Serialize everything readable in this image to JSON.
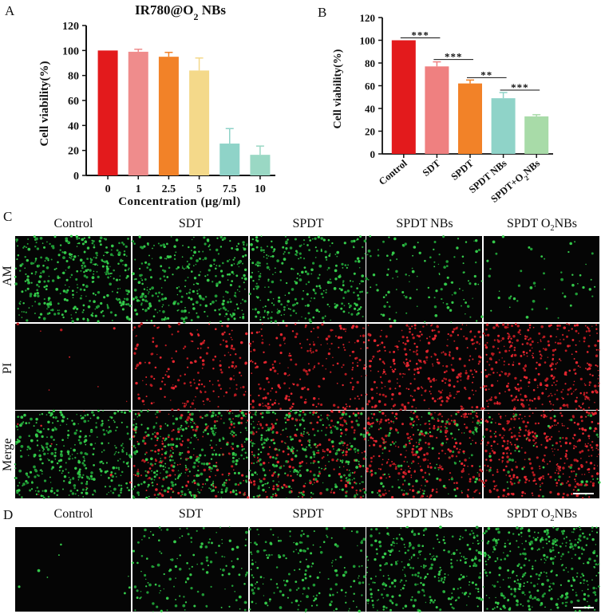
{
  "panels": {
    "a": "A",
    "b": "B",
    "c": "C",
    "d": "D"
  },
  "chart_data": [
    {
      "type": "bar",
      "title": "IR780@O2 NBs",
      "categories": [
        "0",
        "1",
        "2.5",
        "5",
        "7.5",
        "10"
      ],
      "values": [
        100,
        99,
        95,
        84,
        25.5,
        16.5
      ],
      "errors": [
        0,
        2,
        3.5,
        10,
        12,
        7
      ],
      "colors": [
        "#e31a1c",
        "#ef8c8c",
        "#f28228",
        "#f4d98a",
        "#8fd3c8",
        "#9ad8c4"
      ],
      "xlabel": "Concentration (μg/ml)",
      "ylabel": "Cell viability(%)",
      "ylim": [
        0,
        120
      ],
      "yticks": [
        "0",
        "20",
        "40",
        "60",
        "80",
        "100",
        "120"
      ]
    },
    {
      "type": "bar",
      "title": "",
      "categories": [
        "Control",
        "SDT",
        "SPDT",
        "SPDT NBs",
        "SPDT+O2NBs"
      ],
      "values": [
        100,
        77,
        62,
        49,
        33
      ],
      "errors": [
        0,
        4,
        3,
        5,
        1.5
      ],
      "colors": [
        "#e31a1c",
        "#ef8080",
        "#f28228",
        "#8fd3c8",
        "#a8dba8"
      ],
      "xlabel": "",
      "ylabel": "Cell viability(%)",
      "ylim": [
        0,
        120
      ],
      "yticks": [
        "0",
        "20",
        "40",
        "60",
        "80",
        "100",
        "120"
      ],
      "significance": [
        {
          "from": 0,
          "to": 1,
          "label": "***"
        },
        {
          "from": 1,
          "to": 2,
          "label": "***"
        },
        {
          "from": 2,
          "to": 3,
          "label": "**"
        },
        {
          "from": 3,
          "to": 4,
          "label": "***"
        }
      ]
    }
  ],
  "grid_c": {
    "columns": [
      "Control",
      "SDT",
      "SPDT",
      "SPDT NBs",
      "SPDT O2NBs"
    ],
    "rows": [
      "AM",
      "PI",
      "Merge"
    ],
    "green_density": [
      0.9,
      0.75,
      0.7,
      0.3,
      0.12
    ],
    "red_density": [
      0.02,
      0.45,
      0.55,
      0.75,
      0.9
    ]
  },
  "grid_d": {
    "columns": [
      "Control",
      "SDT",
      "SPDT",
      "SPDT NBs",
      "SPDT O2NBs"
    ],
    "green_density": [
      0.02,
      0.35,
      0.45,
      0.7,
      0.9
    ]
  }
}
